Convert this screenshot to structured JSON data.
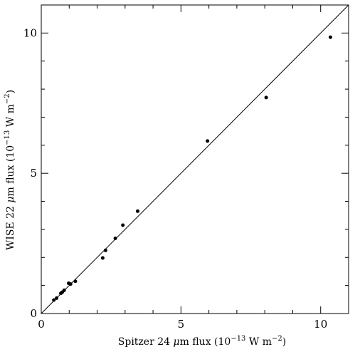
{
  "chart_data": {
    "type": "scatter",
    "title": "",
    "xlabel_parts": {
      "prefix": "Spitzer 24 ",
      "symbol": "μ",
      "middle": "m flux (10",
      "exp1": "−13",
      "unit": " W m",
      "exp2": "−2",
      "suffix": ")"
    },
    "ylabel_parts": {
      "prefix": "WISE 22 ",
      "symbol": "μ",
      "middle": "m flux (10",
      "exp1": "−13",
      "unit": " W m",
      "exp2": "−2",
      "suffix": ")"
    },
    "xlim": [
      0,
      11
    ],
    "ylim": [
      0,
      11
    ],
    "xticks": [
      {
        "value": 0,
        "label": "0"
      },
      {
        "value": 5,
        "label": "5"
      },
      {
        "value": 10,
        "label": "10"
      }
    ],
    "yticks": [
      {
        "value": 0,
        "label": "0"
      },
      {
        "value": 5,
        "label": "5"
      },
      {
        "value": 10,
        "label": "10"
      }
    ],
    "minor_tick_step": 1,
    "reference_line": {
      "from": [
        0,
        0
      ],
      "to": [
        11,
        11
      ]
    },
    "grid": false,
    "legend": "none",
    "points": [
      {
        "x": 0.45,
        "y": 0.48
      },
      {
        "x": 0.55,
        "y": 0.55
      },
      {
        "x": 0.7,
        "y": 0.72
      },
      {
        "x": 0.75,
        "y": 0.76
      },
      {
        "x": 0.82,
        "y": 0.83
      },
      {
        "x": 0.98,
        "y": 1.08
      },
      {
        "x": 1.05,
        "y": 1.05
      },
      {
        "x": 1.22,
        "y": 1.15
      },
      {
        "x": 2.2,
        "y": 1.98
      },
      {
        "x": 2.3,
        "y": 2.25
      },
      {
        "x": 2.65,
        "y": 2.68
      },
      {
        "x": 2.92,
        "y": 3.15
      },
      {
        "x": 3.45,
        "y": 3.65
      },
      {
        "x": 5.95,
        "y": 6.15
      },
      {
        "x": 8.05,
        "y": 7.7
      },
      {
        "x": 10.35,
        "y": 9.85
      }
    ]
  }
}
